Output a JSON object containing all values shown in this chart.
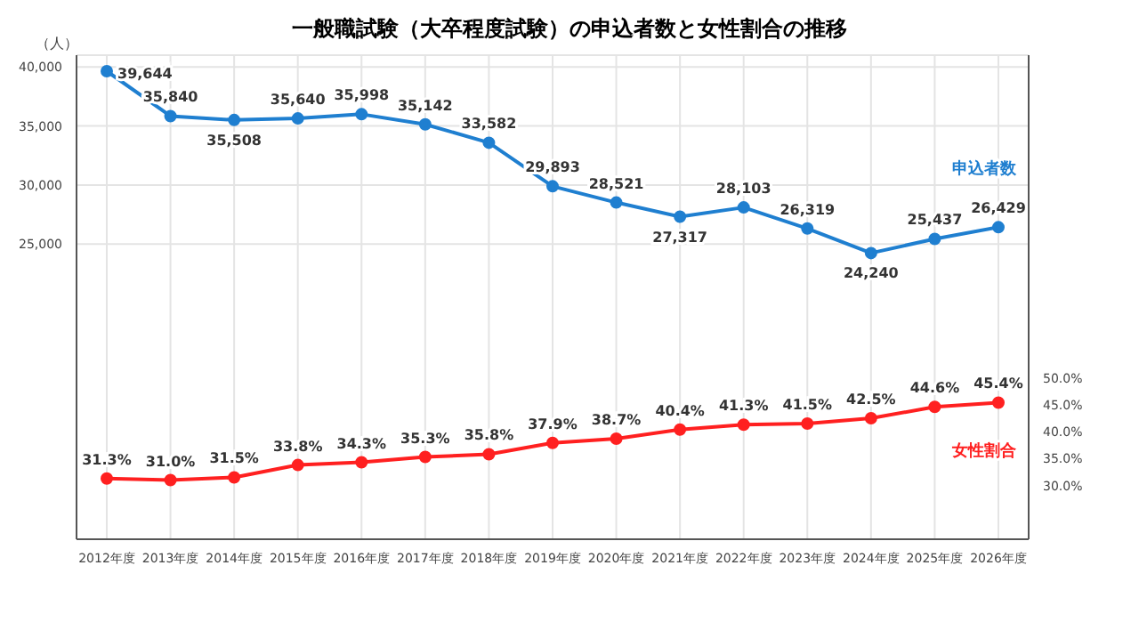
{
  "chart_data": {
    "type": "line",
    "title": "一般職試験（大卒程度試験）の申込者数と女性割合の推移",
    "ylabel": "（人）",
    "categories": [
      "2012年度",
      "2013年度",
      "2014年度",
      "2015年度",
      "2016年度",
      "2017年度",
      "2018年度",
      "2019年度",
      "2020年度",
      "2021年度",
      "2022年度",
      "2023年度",
      "2024年度",
      "2025年度",
      "2026年度"
    ],
    "series": [
      {
        "name": "申込者数",
        "color": "#1f7fd0",
        "values": [
          39644,
          35840,
          35508,
          35640,
          35998,
          35142,
          33582,
          29893,
          28521,
          27317,
          28103,
          26319,
          24240,
          25437,
          26429
        ],
        "value_labels": [
          "39,644",
          "35,840",
          "35,508",
          "35,640",
          "35,998",
          "35,142",
          "33,582",
          "29,893",
          "28,521",
          "27,317",
          "28,103",
          "26,319",
          "24,240",
          "25,437",
          "26,429"
        ]
      },
      {
        "name": "女性割合",
        "color": "#ff2020",
        "axis": "y2",
        "values": [
          31.3,
          31.0,
          31.5,
          33.8,
          34.3,
          35.3,
          35.8,
          37.9,
          38.7,
          40.4,
          41.3,
          41.5,
          42.5,
          44.6,
          45.4
        ],
        "value_labels": [
          "31.3%",
          "31.0%",
          "31.5%",
          "33.8%",
          "34.3%",
          "35.3%",
          "35.8%",
          "37.9%",
          "38.7%",
          "40.4%",
          "41.3%",
          "41.5%",
          "42.5%",
          "44.6%",
          "45.4%"
        ]
      }
    ],
    "ylim": [
      0,
      41000
    ],
    "yticks": [
      {
        "value": 25000,
        "label": "25,000"
      },
      {
        "value": 30000,
        "label": "30,000"
      },
      {
        "value": 35000,
        "label": "35,000"
      },
      {
        "value": 40000,
        "label": "40,000"
      }
    ],
    "y2lim": [
      20,
      110
    ],
    "y2ticks": [
      {
        "value": 30,
        "label": "30.0%"
      },
      {
        "value": 35,
        "label": "35.0%"
      },
      {
        "value": 40,
        "label": "40.0%"
      },
      {
        "value": 45,
        "label": "45.0%"
      },
      {
        "value": 50,
        "label": "50.0%"
      }
    ],
    "grid": true,
    "legend": false,
    "marker": "circle",
    "line_style": "solid"
  }
}
